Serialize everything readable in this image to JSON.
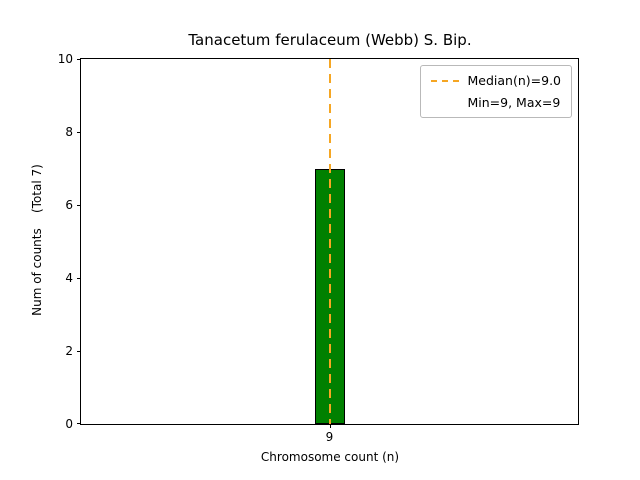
{
  "chart_data": {
    "type": "bar",
    "title": "Tanacetum ferulaceum (Webb) S. Bip.",
    "xlabel": "Chromosome count (n)",
    "ylabel": "Num of counts    (Total 7)",
    "categories": [
      "9"
    ],
    "values": [
      7
    ],
    "ylim": [
      0,
      10
    ],
    "yticks": [
      0,
      2,
      4,
      6,
      8,
      10
    ],
    "median": "9.0",
    "min": 9,
    "max": 9,
    "grid": false,
    "legend_position": "upper right",
    "bar_color": "#008000",
    "bar_edge_color": "#000000",
    "median_line_color": "#f5a623",
    "legend": [
      "Median(n)=9.0",
      "Min=9, Max=9"
    ]
  }
}
